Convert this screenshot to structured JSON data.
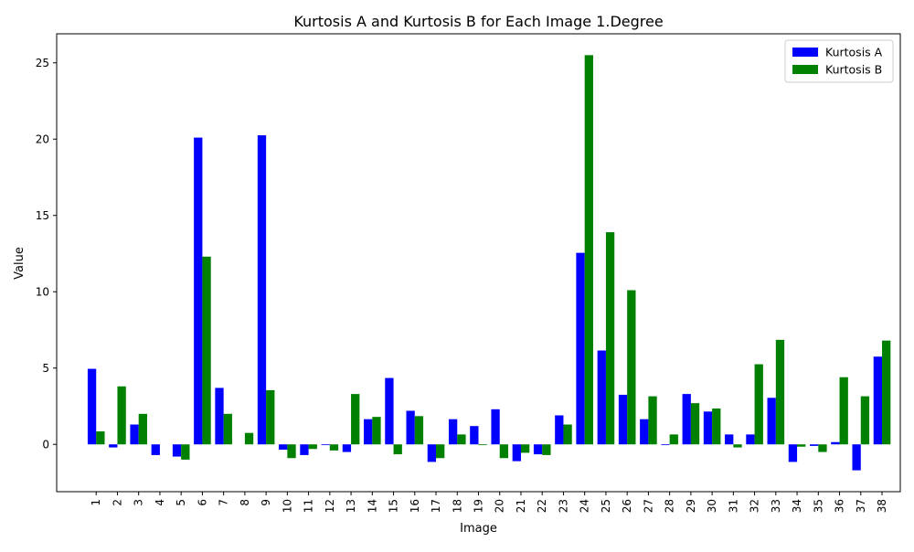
{
  "chart_data": {
    "type": "bar",
    "title": "Kurtosis A and Kurtosis B for Each Image 1.Degree",
    "xlabel": "Image",
    "ylabel": "Value",
    "ylim": [
      -3.1,
      26.9
    ],
    "yticks": [
      0,
      5,
      10,
      15,
      20,
      25
    ],
    "grid": false,
    "legend_position": "top-right",
    "categories": [
      "1",
      "2",
      "3",
      "4",
      "5",
      "6",
      "7",
      "8",
      "9",
      "10",
      "11",
      "12",
      "13",
      "14",
      "15",
      "16",
      "17",
      "18",
      "19",
      "20",
      "21",
      "22",
      "23",
      "24",
      "25",
      "26",
      "27",
      "28",
      "29",
      "30",
      "31",
      "32",
      "33",
      "34",
      "35",
      "36",
      "37",
      "38"
    ],
    "series": [
      {
        "name": "Kurtosis A",
        "color": "#0000ff",
        "values": [
          4.95,
          -0.2,
          1.3,
          -0.7,
          -0.8,
          20.1,
          3.7,
          0.0,
          20.25,
          -0.35,
          -0.7,
          -0.05,
          -0.5,
          1.65,
          4.35,
          2.2,
          -1.15,
          1.65,
          1.2,
          2.3,
          -1.1,
          -0.65,
          1.9,
          12.55,
          6.15,
          3.25,
          1.65,
          -0.05,
          3.3,
          2.15,
          0.65,
          0.65,
          3.05,
          -1.15,
          -0.1,
          0.15,
          -1.7,
          5.75
        ]
      },
      {
        "name": "Kurtosis B",
        "color": "#008000",
        "values": [
          0.85,
          3.8,
          2.0,
          0.0,
          -1.0,
          12.3,
          2.0,
          0.75,
          3.55,
          -0.9,
          -0.3,
          -0.4,
          3.3,
          1.8,
          -0.65,
          1.85,
          -0.9,
          0.65,
          -0.05,
          -0.9,
          -0.55,
          -0.7,
          1.3,
          25.5,
          13.9,
          10.1,
          3.15,
          0.65,
          2.7,
          2.35,
          -0.2,
          5.25,
          6.85,
          -0.15,
          -0.5,
          4.4,
          3.15,
          6.8
        ]
      }
    ]
  }
}
